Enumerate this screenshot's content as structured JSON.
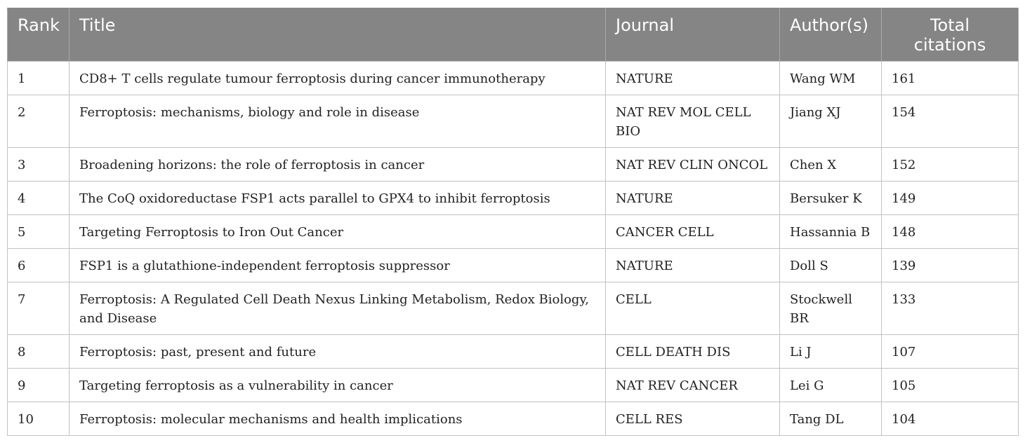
{
  "table": {
    "headers": {
      "rank": "Rank",
      "title": "Title",
      "journal": "Journal",
      "authors": "Author(s)",
      "total_citations": "Total citations"
    },
    "rows": [
      {
        "rank": "1",
        "title": "CD8+ T cells regulate tumour ferroptosis during cancer immunotherapy",
        "journal": "NATURE",
        "author": "Wang WM",
        "citations": "161"
      },
      {
        "rank": "2",
        "title": "Ferroptosis: mechanisms, biology and role in disease",
        "journal": "NAT REV MOL CELL BIO",
        "author": "Jiang XJ",
        "citations": "154"
      },
      {
        "rank": "3",
        "title": "Broadening horizons: the role of ferroptosis in cancer",
        "journal": "NAT REV CLIN ONCOL",
        "author": "Chen X",
        "citations": "152"
      },
      {
        "rank": "4",
        "title": "The CoQ oxidoreductase FSP1 acts parallel to GPX4 to inhibit ferroptosis",
        "journal": "NATURE",
        "author": "Bersuker K",
        "citations": "149"
      },
      {
        "rank": "5",
        "title": "Targeting Ferroptosis to Iron Out Cancer",
        "journal": "CANCER CELL",
        "author": "Hassannia B",
        "citations": "148"
      },
      {
        "rank": "6",
        "title": "FSP1 is a glutathione-independent ferroptosis suppressor",
        "journal": "NATURE",
        "author": "Doll S",
        "citations": "139"
      },
      {
        "rank": "7",
        "title": "Ferroptosis: A Regulated Cell Death Nexus Linking Metabolism, Redox Biology, and Disease",
        "journal": "CELL",
        "author": "Stockwell BR",
        "citations": "133"
      },
      {
        "rank": "8",
        "title": "Ferroptosis: past, present and future",
        "journal": "CELL DEATH DIS",
        "author": "Li J",
        "citations": "107"
      },
      {
        "rank": "9",
        "title": "Targeting ferroptosis as a vulnerability in cancer",
        "journal": "NAT REV CANCER",
        "author": "Lei G",
        "citations": "105"
      },
      {
        "rank": "10",
        "title": "Ferroptosis: molecular mechanisms and health implications",
        "journal": "CELL RES",
        "author": "Tang DL",
        "citations": "104"
      }
    ]
  },
  "colors": {
    "header_background": "#858585",
    "header_text": "#ffffff",
    "grid_lines": "#c2c2c2"
  }
}
